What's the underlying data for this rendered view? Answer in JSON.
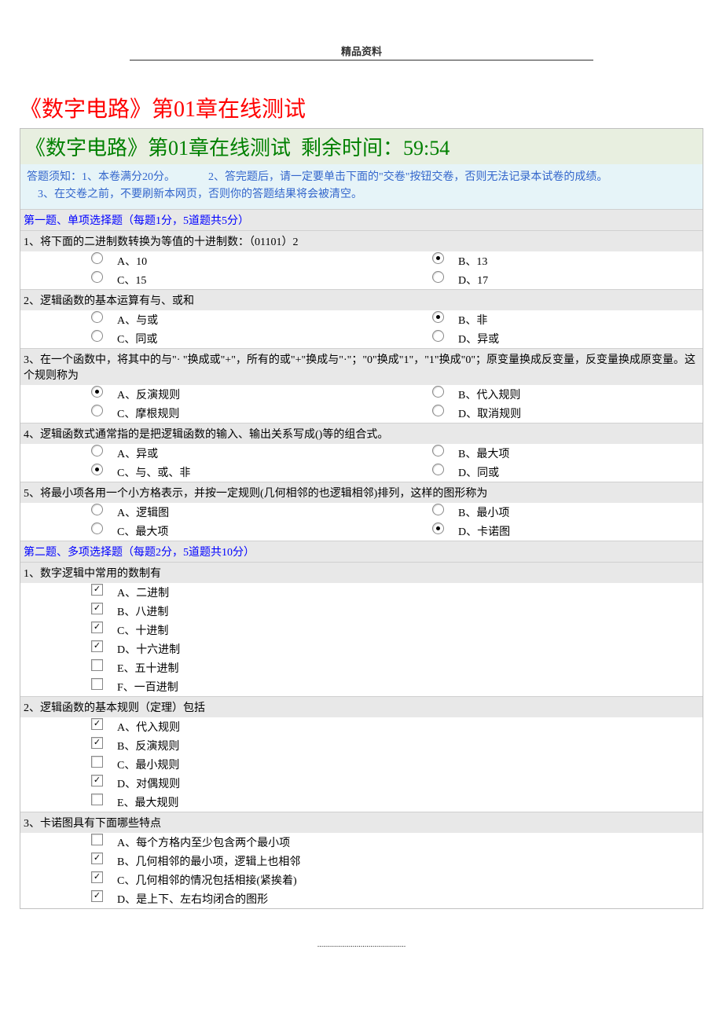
{
  "top_label": "精品资料",
  "main_title": "《数字电路》第01章在线测试",
  "banner_left": "《数字电路》第01章在线测试",
  "banner_right": "剩余时间：59:54",
  "instructions_line1_a": "答题须知：1、本卷满分20分。",
  "instructions_line1_b": "2、答完题后，请一定要单击下面的\"交卷\"按钮交卷，否则无法记录本试卷的成绩。",
  "instructions_line2": "3、在交卷之前，不要刷新本网页，否则你的答题结果将会被清空。",
  "section1_header": "第一题、单项选择题（每题1分，5道题共5分）",
  "q1": {
    "text": "1、将下面的二进制数转换为等值的十进制数：（01101）2",
    "opts": [
      {
        "label": "A、10",
        "sel": false
      },
      {
        "label": "B、13",
        "sel": true
      },
      {
        "label": "C、15",
        "sel": false
      },
      {
        "label": "D、17",
        "sel": false
      }
    ]
  },
  "q2": {
    "text": "2、逻辑函数的基本运算有与、或和",
    "opts": [
      {
        "label": "A、与或",
        "sel": false
      },
      {
        "label": "B、非",
        "sel": true
      },
      {
        "label": "C、同或",
        "sel": false
      },
      {
        "label": "D、异或",
        "sel": false
      }
    ]
  },
  "q3": {
    "text": "3、在一个函数中，将其中的与\"· \"换成或\"+\"，所有的或\"+\"换成与\"·\"；\"0\"换成\"1\"，\"1\"换成\"0\"；原变量换成反变量，反变量换成原变量。这个规则称为",
    "opts": [
      {
        "label": "A、反演规则",
        "sel": true
      },
      {
        "label": "B、代入规则",
        "sel": false
      },
      {
        "label": "C、摩根规则",
        "sel": false
      },
      {
        "label": "D、取消规则",
        "sel": false
      }
    ]
  },
  "q4": {
    "text": "4、逻辑函数式通常指的是把逻辑函数的输入、输出关系写成()等的组合式。",
    "opts": [
      {
        "label": "A、异或",
        "sel": false
      },
      {
        "label": "B、最大项",
        "sel": false
      },
      {
        "label": "C、与、或、非",
        "sel": true
      },
      {
        "label": "D、同或",
        "sel": false
      }
    ]
  },
  "q5": {
    "text": "5、将最小项各用一个小方格表示，并按一定规则(几何相邻的也逻辑相邻)排列，这样的图形称为",
    "opts": [
      {
        "label": "A、逻辑图",
        "sel": false
      },
      {
        "label": "B、最小项",
        "sel": false
      },
      {
        "label": "C、最大项",
        "sel": false
      },
      {
        "label": "D、卡诺图",
        "sel": true
      }
    ]
  },
  "section2_header": "第二题、多项选择题（每题2分，5道题共10分）",
  "m1": {
    "text": "1、数字逻辑中常用的数制有",
    "opts": [
      {
        "label": "A、二进制",
        "sel": true
      },
      {
        "label": "B、八进制",
        "sel": true
      },
      {
        "label": "C、十进制",
        "sel": true
      },
      {
        "label": "D、十六进制",
        "sel": true
      },
      {
        "label": "E、五十进制",
        "sel": false
      },
      {
        "label": "F、一百进制",
        "sel": false
      }
    ]
  },
  "m2": {
    "text": "2、逻辑函数的基本规则（定理）包括",
    "opts": [
      {
        "label": "A、代入规则",
        "sel": true
      },
      {
        "label": "B、反演规则",
        "sel": true
      },
      {
        "label": "C、最小规则",
        "sel": false
      },
      {
        "label": "D、对偶规则",
        "sel": true
      },
      {
        "label": "E、最大规则",
        "sel": false
      }
    ]
  },
  "m3": {
    "text": "3、卡诺图具有下面哪些特点",
    "opts": [
      {
        "label": "A、每个方格内至少包含两个最小项",
        "sel": false
      },
      {
        "label": "B、几何相邻的最小项，逻辑上也相邻",
        "sel": true
      },
      {
        "label": "C、几何相邻的情况包括相接(紧挨着)",
        "sel": true
      },
      {
        "label": "D、是上下、左右均闭合的图形",
        "sel": true
      }
    ]
  },
  "dots": "............................................."
}
